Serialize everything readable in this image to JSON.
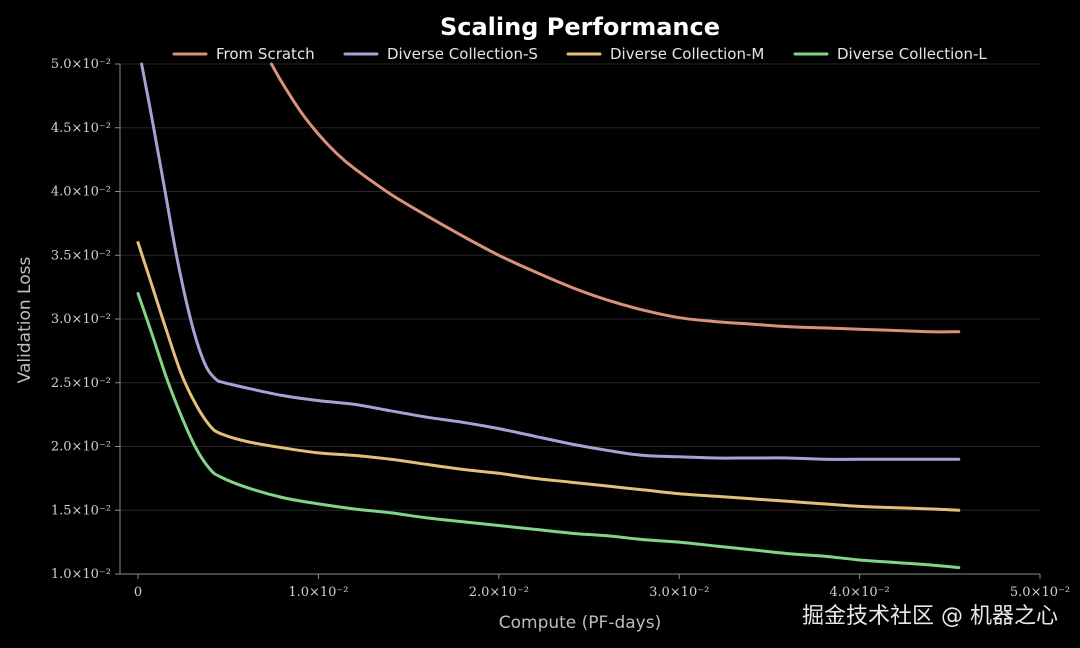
{
  "chart_data": {
    "type": "line",
    "title": "Scaling Performance",
    "xlabel": "Compute (PF-days)",
    "ylabel": "Validation Loss",
    "xlim": [
      -0.001,
      0.05
    ],
    "ylim": [
      0.01,
      0.05
    ],
    "grid": true,
    "legend_position": "top",
    "x_ticks": [
      {
        "value": 0,
        "label": "0"
      },
      {
        "value": 0.01,
        "label": "1.0×10⁻²"
      },
      {
        "value": 0.02,
        "label": "2.0×10⁻²"
      },
      {
        "value": 0.03,
        "label": "3.0×10⁻²"
      },
      {
        "value": 0.04,
        "label": "4.0×10⁻²"
      },
      {
        "value": 0.05,
        "label": "5.0×10⁻²"
      }
    ],
    "y_ticks": [
      {
        "value": 0.01,
        "label": "1.0×10⁻²"
      },
      {
        "value": 0.015,
        "label": "1.5×10⁻²"
      },
      {
        "value": 0.02,
        "label": "2.0×10⁻²"
      },
      {
        "value": 0.025,
        "label": "2.5×10⁻²"
      },
      {
        "value": 0.03,
        "label": "3.0×10⁻²"
      },
      {
        "value": 0.035,
        "label": "3.5×10⁻²"
      },
      {
        "value": 0.04,
        "label": "4.0×10⁻²"
      },
      {
        "value": 0.045,
        "label": "4.5×10⁻²"
      },
      {
        "value": 0.05,
        "label": "5.0×10⁻²"
      }
    ],
    "series": [
      {
        "name": "From Scratch",
        "color": "#d9917a",
        "x": [
          0.0074,
          0.008,
          0.009,
          0.01,
          0.011,
          0.012,
          0.014,
          0.016,
          0.018,
          0.02,
          0.022,
          0.024,
          0.026,
          0.028,
          0.03,
          0.032,
          0.034,
          0.036,
          0.038,
          0.04,
          0.042,
          0.044,
          0.0455
        ],
        "y": [
          0.05,
          0.0485,
          0.0463,
          0.0445,
          0.043,
          0.0418,
          0.0398,
          0.0381,
          0.0365,
          0.035,
          0.0337,
          0.0325,
          0.0315,
          0.0307,
          0.0301,
          0.0298,
          0.0296,
          0.0294,
          0.0293,
          0.0292,
          0.0291,
          0.029,
          0.029
        ]
      },
      {
        "name": "Diverse Collection-S",
        "color": "#a9a1d6",
        "x": [
          0.0002,
          0.0008,
          0.0015,
          0.0022,
          0.003,
          0.0037,
          0.0043,
          0.0048,
          0.006,
          0.008,
          0.01,
          0.012,
          0.014,
          0.016,
          0.018,
          0.02,
          0.022,
          0.024,
          0.026,
          0.028,
          0.03,
          0.032,
          0.034,
          0.036,
          0.038,
          0.04,
          0.042,
          0.044,
          0.0455
        ],
        "y": [
          0.05,
          0.0455,
          0.04,
          0.0345,
          0.0295,
          0.0265,
          0.0253,
          0.025,
          0.0246,
          0.024,
          0.0236,
          0.0233,
          0.0228,
          0.0223,
          0.0219,
          0.0214,
          0.0208,
          0.0202,
          0.0197,
          0.0193,
          0.0192,
          0.0191,
          0.0191,
          0.0191,
          0.019,
          0.019,
          0.019,
          0.019,
          0.019
        ]
      },
      {
        "name": "Diverse Collection-M",
        "color": "#e2c07c",
        "x": [
          0.0,
          0.0008,
          0.0016,
          0.0024,
          0.0032,
          0.004,
          0.0046,
          0.006,
          0.008,
          0.01,
          0.012,
          0.014,
          0.016,
          0.018,
          0.02,
          0.022,
          0.024,
          0.026,
          0.028,
          0.03,
          0.032,
          0.034,
          0.036,
          0.038,
          0.04,
          0.042,
          0.044,
          0.0455
        ],
        "y": [
          0.036,
          0.0325,
          0.029,
          0.0257,
          0.0233,
          0.0216,
          0.021,
          0.0204,
          0.0199,
          0.0195,
          0.0193,
          0.019,
          0.0186,
          0.0182,
          0.0179,
          0.0175,
          0.0172,
          0.0169,
          0.0166,
          0.0163,
          0.0161,
          0.0159,
          0.0157,
          0.0155,
          0.0153,
          0.0152,
          0.0151,
          0.015
        ]
      },
      {
        "name": "Diverse Collection-L",
        "color": "#84d487",
        "x": [
          0.0,
          0.0008,
          0.0016,
          0.0024,
          0.0032,
          0.004,
          0.0046,
          0.006,
          0.008,
          0.01,
          0.012,
          0.014,
          0.016,
          0.018,
          0.02,
          0.022,
          0.024,
          0.026,
          0.028,
          0.03,
          0.032,
          0.034,
          0.036,
          0.038,
          0.04,
          0.042,
          0.044,
          0.0455
        ],
        "y": [
          0.032,
          0.0287,
          0.0253,
          0.0224,
          0.0199,
          0.0182,
          0.0176,
          0.0168,
          0.016,
          0.0155,
          0.0151,
          0.0148,
          0.0144,
          0.0141,
          0.0138,
          0.0135,
          0.0132,
          0.013,
          0.0127,
          0.0125,
          0.0122,
          0.0119,
          0.0116,
          0.0114,
          0.0111,
          0.0109,
          0.0107,
          0.0105
        ]
      }
    ]
  },
  "watermark": "掘金技术社区 @ 机器之心"
}
